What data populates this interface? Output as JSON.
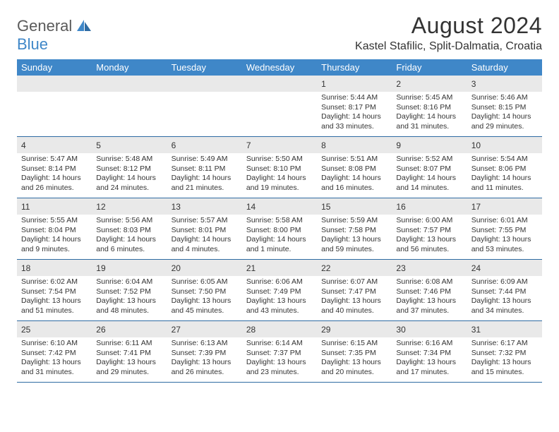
{
  "logo": {
    "part1": "General",
    "part2": "Blue"
  },
  "title": "August 2024",
  "location": "Kastel Stafilic, Split-Dalmatia, Croatia",
  "colors": {
    "header_bg": "#3f87c8",
    "header_text": "#ffffff",
    "daynum_bg": "#e9e9e9",
    "week_border": "#2e6ba3",
    "text": "#333333",
    "logo_gray": "#5a5a5a",
    "logo_blue": "#3f87c8",
    "page_bg": "#ffffff"
  },
  "day_names": [
    "Sunday",
    "Monday",
    "Tuesday",
    "Wednesday",
    "Thursday",
    "Friday",
    "Saturday"
  ],
  "weeks": [
    [
      {
        "blank": true
      },
      {
        "blank": true
      },
      {
        "blank": true
      },
      {
        "blank": true
      },
      {
        "day": "1",
        "sunrise": "Sunrise: 5:44 AM",
        "sunset": "Sunset: 8:17 PM",
        "daylight": "Daylight: 14 hours and 33 minutes."
      },
      {
        "day": "2",
        "sunrise": "Sunrise: 5:45 AM",
        "sunset": "Sunset: 8:16 PM",
        "daylight": "Daylight: 14 hours and 31 minutes."
      },
      {
        "day": "3",
        "sunrise": "Sunrise: 5:46 AM",
        "sunset": "Sunset: 8:15 PM",
        "daylight": "Daylight: 14 hours and 29 minutes."
      }
    ],
    [
      {
        "day": "4",
        "sunrise": "Sunrise: 5:47 AM",
        "sunset": "Sunset: 8:14 PM",
        "daylight": "Daylight: 14 hours and 26 minutes."
      },
      {
        "day": "5",
        "sunrise": "Sunrise: 5:48 AM",
        "sunset": "Sunset: 8:12 PM",
        "daylight": "Daylight: 14 hours and 24 minutes."
      },
      {
        "day": "6",
        "sunrise": "Sunrise: 5:49 AM",
        "sunset": "Sunset: 8:11 PM",
        "daylight": "Daylight: 14 hours and 21 minutes."
      },
      {
        "day": "7",
        "sunrise": "Sunrise: 5:50 AM",
        "sunset": "Sunset: 8:10 PM",
        "daylight": "Daylight: 14 hours and 19 minutes."
      },
      {
        "day": "8",
        "sunrise": "Sunrise: 5:51 AM",
        "sunset": "Sunset: 8:08 PM",
        "daylight": "Daylight: 14 hours and 16 minutes."
      },
      {
        "day": "9",
        "sunrise": "Sunrise: 5:52 AM",
        "sunset": "Sunset: 8:07 PM",
        "daylight": "Daylight: 14 hours and 14 minutes."
      },
      {
        "day": "10",
        "sunrise": "Sunrise: 5:54 AM",
        "sunset": "Sunset: 8:06 PM",
        "daylight": "Daylight: 14 hours and 11 minutes."
      }
    ],
    [
      {
        "day": "11",
        "sunrise": "Sunrise: 5:55 AM",
        "sunset": "Sunset: 8:04 PM",
        "daylight": "Daylight: 14 hours and 9 minutes."
      },
      {
        "day": "12",
        "sunrise": "Sunrise: 5:56 AM",
        "sunset": "Sunset: 8:03 PM",
        "daylight": "Daylight: 14 hours and 6 minutes."
      },
      {
        "day": "13",
        "sunrise": "Sunrise: 5:57 AM",
        "sunset": "Sunset: 8:01 PM",
        "daylight": "Daylight: 14 hours and 4 minutes."
      },
      {
        "day": "14",
        "sunrise": "Sunrise: 5:58 AM",
        "sunset": "Sunset: 8:00 PM",
        "daylight": "Daylight: 14 hours and 1 minute."
      },
      {
        "day": "15",
        "sunrise": "Sunrise: 5:59 AM",
        "sunset": "Sunset: 7:58 PM",
        "daylight": "Daylight: 13 hours and 59 minutes."
      },
      {
        "day": "16",
        "sunrise": "Sunrise: 6:00 AM",
        "sunset": "Sunset: 7:57 PM",
        "daylight": "Daylight: 13 hours and 56 minutes."
      },
      {
        "day": "17",
        "sunrise": "Sunrise: 6:01 AM",
        "sunset": "Sunset: 7:55 PM",
        "daylight": "Daylight: 13 hours and 53 minutes."
      }
    ],
    [
      {
        "day": "18",
        "sunrise": "Sunrise: 6:02 AM",
        "sunset": "Sunset: 7:54 PM",
        "daylight": "Daylight: 13 hours and 51 minutes."
      },
      {
        "day": "19",
        "sunrise": "Sunrise: 6:04 AM",
        "sunset": "Sunset: 7:52 PM",
        "daylight": "Daylight: 13 hours and 48 minutes."
      },
      {
        "day": "20",
        "sunrise": "Sunrise: 6:05 AM",
        "sunset": "Sunset: 7:50 PM",
        "daylight": "Daylight: 13 hours and 45 minutes."
      },
      {
        "day": "21",
        "sunrise": "Sunrise: 6:06 AM",
        "sunset": "Sunset: 7:49 PM",
        "daylight": "Daylight: 13 hours and 43 minutes."
      },
      {
        "day": "22",
        "sunrise": "Sunrise: 6:07 AM",
        "sunset": "Sunset: 7:47 PM",
        "daylight": "Daylight: 13 hours and 40 minutes."
      },
      {
        "day": "23",
        "sunrise": "Sunrise: 6:08 AM",
        "sunset": "Sunset: 7:46 PM",
        "daylight": "Daylight: 13 hours and 37 minutes."
      },
      {
        "day": "24",
        "sunrise": "Sunrise: 6:09 AM",
        "sunset": "Sunset: 7:44 PM",
        "daylight": "Daylight: 13 hours and 34 minutes."
      }
    ],
    [
      {
        "day": "25",
        "sunrise": "Sunrise: 6:10 AM",
        "sunset": "Sunset: 7:42 PM",
        "daylight": "Daylight: 13 hours and 31 minutes."
      },
      {
        "day": "26",
        "sunrise": "Sunrise: 6:11 AM",
        "sunset": "Sunset: 7:41 PM",
        "daylight": "Daylight: 13 hours and 29 minutes."
      },
      {
        "day": "27",
        "sunrise": "Sunrise: 6:13 AM",
        "sunset": "Sunset: 7:39 PM",
        "daylight": "Daylight: 13 hours and 26 minutes."
      },
      {
        "day": "28",
        "sunrise": "Sunrise: 6:14 AM",
        "sunset": "Sunset: 7:37 PM",
        "daylight": "Daylight: 13 hours and 23 minutes."
      },
      {
        "day": "29",
        "sunrise": "Sunrise: 6:15 AM",
        "sunset": "Sunset: 7:35 PM",
        "daylight": "Daylight: 13 hours and 20 minutes."
      },
      {
        "day": "30",
        "sunrise": "Sunrise: 6:16 AM",
        "sunset": "Sunset: 7:34 PM",
        "daylight": "Daylight: 13 hours and 17 minutes."
      },
      {
        "day": "31",
        "sunrise": "Sunrise: 6:17 AM",
        "sunset": "Sunset: 7:32 PM",
        "daylight": "Daylight: 13 hours and 15 minutes."
      }
    ]
  ]
}
